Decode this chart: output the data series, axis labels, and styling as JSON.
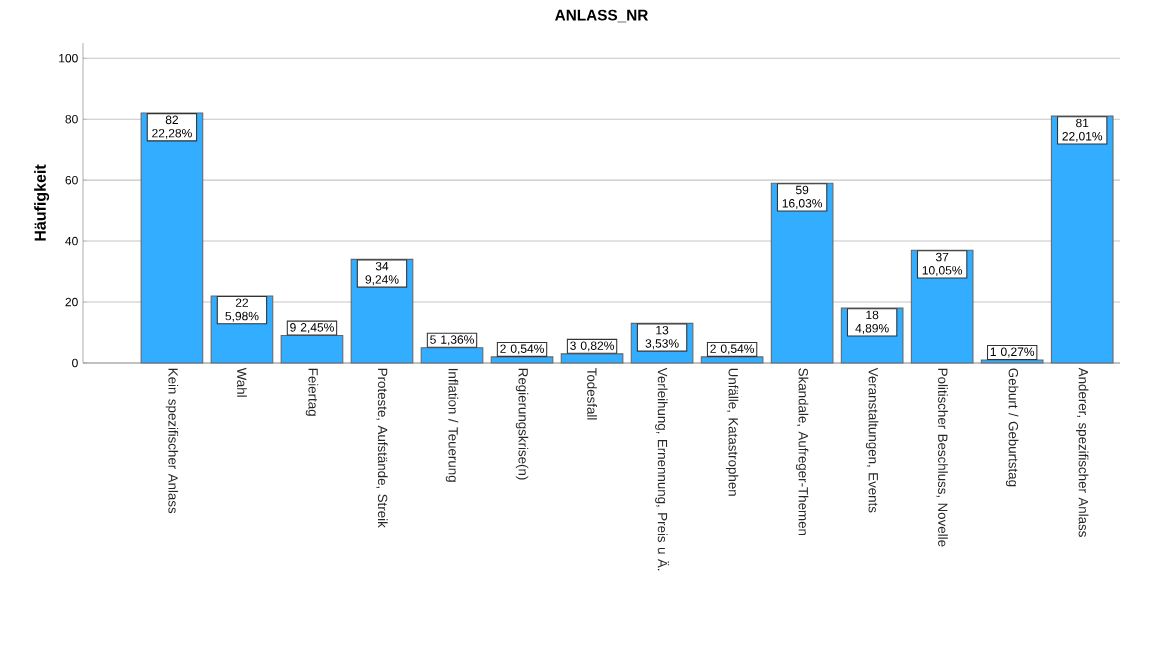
{
  "chart_data": {
    "type": "bar",
    "title": "ANLASS_NR",
    "ylabel": "Häufigkeit",
    "categories": [
      "Kein spezifischer Anlass",
      "Wahl",
      "Feiertag",
      "Proteste, Aufstände, Streik",
      "Inflation / Teuerung",
      "Regierungskrise(n)",
      "Todesfall",
      "Verleihung, Ernennung, Preis u Ä.",
      "Unfälle, Katastrophen",
      "Skandale, Aufreger-Themen",
      "Veranstaltungen, Events",
      "Politischer Beschluss, Novelle",
      "Geburt / Geburtstag",
      "Anderer, spezifischer Anlass"
    ],
    "values": [
      82,
      22,
      9,
      34,
      5,
      2,
      3,
      13,
      2,
      59,
      18,
      37,
      1,
      81
    ],
    "value_labels": [
      "82 22,28%",
      "22 5,98%",
      "9 2,45%",
      "34 9,24%",
      "5 1,36%",
      "2 0,54%",
      "3 0,82%",
      "13 3,53%",
      "2 0,54%",
      "59 16,03%",
      "18 4,89%",
      "37 10,05%",
      "1 0,27%",
      "81 22,01%"
    ],
    "color": "#33adff",
    "ylim": [
      0,
      105
    ],
    "yticks": [
      0,
      20,
      40,
      60,
      80,
      100
    ],
    "grid": "y"
  }
}
